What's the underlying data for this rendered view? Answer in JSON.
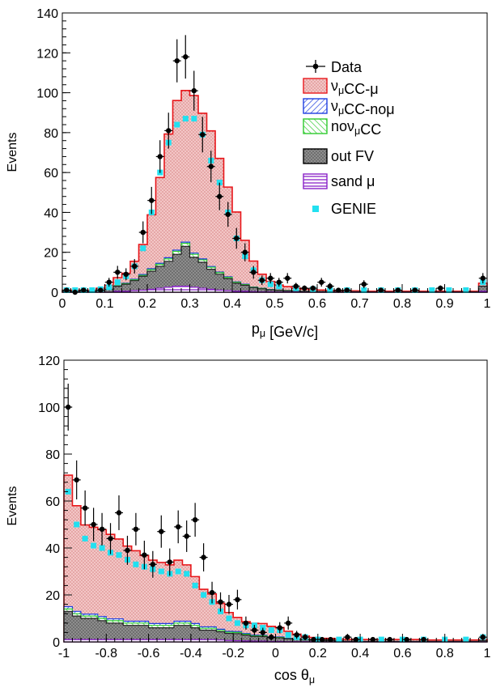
{
  "colors": {
    "signal": "#e8161a",
    "signal_fill": "#f3c6c6",
    "nomu": "#1f3fe0",
    "nocc": "#2ecb2e",
    "outfv": "#222222",
    "outfv_fill": "#8e8e8e",
    "sand": "#8a22c8",
    "genie": "#22e0f0",
    "data": "#000000"
  },
  "legend": {
    "data": "Data",
    "signal": "ν_μCC-μ",
    "nomu": "ν_μCC-noμ",
    "nocc": "noν_μCC",
    "outfv": "out FV",
    "sand": "sand μ",
    "genie": "GENIE"
  },
  "chart_data": [
    {
      "type": "bar",
      "panel": "top",
      "xlabel": "p_μ [GeV/c]",
      "ylabel": "Events",
      "xlim": [
        0,
        1
      ],
      "ylim": [
        0,
        140
      ],
      "yticks": [
        "0",
        "20",
        "40",
        "60",
        "80",
        "100",
        "120",
        "140"
      ],
      "xticks": [
        "0",
        "0.1",
        "0.2",
        "0.3",
        "0.4",
        "0.5",
        "0.6",
        "0.7",
        "0.8",
        "0.9",
        "1"
      ],
      "grid": false,
      "legend_position": "top-right",
      "bin_edges": [
        0.0,
        0.02,
        0.04,
        0.06,
        0.08,
        0.1,
        0.12,
        0.14,
        0.16,
        0.18,
        0.2,
        0.22,
        0.24,
        0.26,
        0.28,
        0.3,
        0.32,
        0.34,
        0.36,
        0.38,
        0.4,
        0.42,
        0.44,
        0.46,
        0.48,
        0.5,
        0.52,
        0.54,
        0.56,
        0.58,
        0.6,
        0.62,
        0.64,
        0.66,
        0.68,
        0.7,
        0.72,
        0.74,
        0.76,
        0.78,
        0.8,
        0.82,
        0.84,
        0.86,
        0.88,
        0.9,
        0.92,
        0.94,
        0.96,
        0.98,
        1.0
      ],
      "stacks": {
        "sand": [
          0,
          0,
          0,
          0,
          0,
          0,
          0.5,
          0.5,
          0.8,
          1,
          1.5,
          2,
          2.5,
          3,
          3,
          2.5,
          2,
          1.5,
          1,
          0.8,
          0.5,
          0.5,
          0.3,
          0.2,
          0.2,
          0.1,
          0.1,
          0.1,
          0,
          0,
          0,
          0,
          0,
          0,
          0,
          0,
          0,
          0,
          0,
          0,
          0,
          0,
          0,
          0,
          0,
          0,
          0,
          0,
          0,
          0.5
        ],
        "outfv": [
          0.5,
          0.5,
          0.5,
          0.5,
          1,
          1.5,
          2.5,
          3.5,
          5,
          7,
          9,
          11,
          13,
          16,
          20,
          15,
          13,
          10,
          8,
          6,
          4,
          3,
          2,
          1.5,
          1,
          0.8,
          0.6,
          0.5,
          0.4,
          0.3,
          0.3,
          0.2,
          0.2,
          0.2,
          0.2,
          0.2,
          0.1,
          0.1,
          0.1,
          0.1,
          0.1,
          0.1,
          0.1,
          0.1,
          0.1,
          0.1,
          0.1,
          0.1,
          0.1,
          2.5
        ],
        "nocc": [
          0,
          0,
          0,
          0,
          0,
          0,
          0.2,
          0.3,
          0.4,
          0.5,
          0.8,
          1,
          1.2,
          1.5,
          1.5,
          1.5,
          1.2,
          1,
          0.8,
          0.6,
          0.5,
          0.3,
          0.2,
          0.2,
          0.1,
          0.1,
          0.1,
          0,
          0,
          0,
          0,
          0,
          0,
          0,
          0,
          0,
          0,
          0,
          0,
          0,
          0,
          0,
          0,
          0,
          0,
          0,
          0,
          0,
          0,
          0
        ],
        "nomu": [
          0,
          0,
          0,
          0,
          0,
          0,
          0.1,
          0.2,
          0.3,
          0.4,
          0.5,
          0.5,
          0.6,
          0.6,
          0.6,
          0.6,
          0.5,
          0.4,
          0.3,
          0.3,
          0.2,
          0.2,
          0.1,
          0.1,
          0.1,
          0.1,
          0,
          0,
          0,
          0,
          0,
          0,
          0,
          0,
          0,
          0,
          0,
          0,
          0,
          0,
          0,
          0,
          0,
          0,
          0,
          0,
          0,
          0,
          0,
          0
        ],
        "signal": [
          0.5,
          0.5,
          0.5,
          0.5,
          1,
          2,
          4,
          5,
          9,
          15,
          27,
          43,
          62,
          75,
          76,
          79,
          73,
          68,
          57,
          45,
          35,
          22,
          13,
          7,
          4,
          2.5,
          2,
          1.5,
          1.2,
          1,
          0.8,
          0.7,
          0.6,
          0.5,
          0.5,
          0.4,
          0.4,
          0.4,
          0.4,
          0.4,
          0.4,
          0.4,
          0.4,
          0.4,
          0.4,
          0.4,
          0.4,
          0.4,
          0.4,
          1.5
        ]
      },
      "genie": {
        "x": [
          0.01,
          0.03,
          0.05,
          0.07,
          0.09,
          0.11,
          0.13,
          0.15,
          0.17,
          0.19,
          0.21,
          0.23,
          0.25,
          0.27,
          0.29,
          0.31,
          0.33,
          0.35,
          0.37,
          0.39,
          0.41,
          0.43,
          0.45,
          0.47,
          0.49,
          0.51,
          0.55,
          0.59,
          0.63,
          0.67,
          0.71,
          0.75,
          0.79,
          0.83,
          0.87,
          0.91,
          0.95,
          0.99
        ],
        "y": [
          1,
          1,
          1,
          1,
          1.5,
          2.5,
          5,
          8,
          13,
          22,
          40,
          60,
          75,
          84,
          87,
          87,
          79,
          66,
          55,
          40,
          27,
          18,
          11,
          6,
          4,
          3,
          2,
          1.5,
          1,
          1,
          1,
          1,
          1,
          1,
          1,
          1,
          1,
          5
        ]
      },
      "data_points": {
        "x": [
          0.01,
          0.03,
          0.05,
          0.09,
          0.11,
          0.13,
          0.15,
          0.17,
          0.19,
          0.21,
          0.23,
          0.25,
          0.27,
          0.29,
          0.31,
          0.33,
          0.35,
          0.37,
          0.39,
          0.41,
          0.43,
          0.45,
          0.47,
          0.49,
          0.51,
          0.53,
          0.55,
          0.57,
          0.59,
          0.61,
          0.63,
          0.65,
          0.67,
          0.71,
          0.75,
          0.79,
          0.83,
          0.89,
          0.99
        ],
        "y": [
          1,
          0,
          1,
          1,
          5,
          10,
          9,
          13,
          30,
          46,
          68,
          81,
          116,
          118,
          101,
          79,
          63,
          48,
          39,
          27,
          20,
          10,
          6,
          7,
          5,
          7,
          3,
          2,
          2,
          5,
          3,
          1,
          1,
          4,
          1,
          1,
          1,
          2,
          7
        ],
        "err": [
          1,
          0,
          1,
          1,
          2.2,
          3.2,
          3,
          3.6,
          5.5,
          6.8,
          8.2,
          9,
          10.8,
          10.9,
          10,
          8.9,
          7.9,
          6.9,
          6.2,
          5.2,
          4.5,
          3.2,
          2.4,
          2.6,
          2.2,
          2.6,
          1.7,
          1.4,
          1.4,
          2.2,
          1.7,
          1,
          1,
          2,
          1,
          1,
          1,
          1.4,
          2.6
        ]
      }
    },
    {
      "type": "bar",
      "panel": "bottom",
      "xlabel": "cos θ_μ",
      "ylabel": "Events",
      "xlim": [
        -1,
        1
      ],
      "ylim": [
        0,
        120
      ],
      "yticks": [
        "0",
        "20",
        "40",
        "60",
        "80",
        "100",
        "120"
      ],
      "xticks": [
        "-1",
        "-0.8",
        "-0.6",
        "-0.4",
        "-0.2",
        "0",
        "0.2",
        "0.4",
        "0.6",
        "0.8",
        "1"
      ],
      "grid": false,
      "bin_edges": [
        -1.0,
        -0.96,
        -0.92,
        -0.88,
        -0.84,
        -0.8,
        -0.76,
        -0.72,
        -0.68,
        -0.64,
        -0.6,
        -0.56,
        -0.52,
        -0.48,
        -0.44,
        -0.4,
        -0.36,
        -0.32,
        -0.28,
        -0.24,
        -0.2,
        -0.16,
        -0.12,
        -0.08,
        -0.04,
        0.0,
        0.04,
        0.08,
        0.12,
        0.16,
        0.2,
        0.24,
        0.28,
        0.32,
        0.36,
        0.4,
        0.44,
        0.48,
        0.52,
        0.56,
        0.6,
        0.64,
        0.68,
        0.72,
        0.76,
        0.8,
        0.84,
        0.88,
        0.92,
        0.96,
        1.0
      ],
      "stacks": {
        "sand": [
          1,
          1,
          1,
          1,
          1,
          1,
          1,
          1,
          1,
          1,
          1,
          1,
          1,
          1,
          1,
          1,
          1,
          1,
          0.8,
          0.6,
          0.5,
          0.4,
          0.3,
          0.3,
          0.2,
          0.2,
          0.1,
          0.1,
          0.1,
          0.1,
          0,
          0,
          0,
          0,
          0,
          0,
          0,
          0,
          0,
          0,
          0,
          0,
          0,
          0,
          0,
          0,
          0,
          0,
          0,
          0
        ],
        "outfv": [
          12,
          10,
          9,
          9,
          8,
          7,
          7,
          6,
          6,
          6,
          5,
          5,
          5,
          6,
          6,
          5,
          4,
          4,
          3.5,
          3,
          3,
          2.5,
          2,
          2,
          1.5,
          1.5,
          1.2,
          1,
          0.8,
          0.6,
          0.5,
          0.5,
          0.4,
          0.3,
          0.3,
          0.2,
          0.2,
          0.2,
          0.2,
          0.2,
          0.2,
          0.2,
          0.2,
          0.2,
          0.2,
          0.2,
          0.2,
          0.2,
          0.2,
          0.5
        ],
        "nocc": [
          1,
          1,
          1,
          1,
          1,
          1,
          1,
          1,
          1,
          1,
          1,
          1,
          1,
          1,
          1,
          1,
          0.8,
          0.8,
          0.6,
          0.5,
          0.5,
          0.4,
          0.3,
          0.3,
          0.2,
          0.2,
          0.1,
          0.1,
          0.1,
          0,
          0,
          0,
          0,
          0,
          0,
          0,
          0,
          0,
          0,
          0,
          0,
          0,
          0,
          0,
          0,
          0,
          0,
          0,
          0,
          0
        ],
        "nomu": [
          1,
          1,
          0.8,
          0.8,
          0.8,
          0.8,
          0.8,
          0.8,
          0.8,
          0.8,
          0.8,
          0.8,
          0.8,
          0.8,
          0.8,
          0.8,
          0.6,
          0.6,
          0.5,
          0.4,
          0.4,
          0.3,
          0.3,
          0.2,
          0.2,
          0.2,
          0.1,
          0.1,
          0,
          0,
          0,
          0,
          0,
          0,
          0,
          0,
          0,
          0,
          0,
          0,
          0,
          0,
          0,
          0,
          0,
          0,
          0,
          0,
          0,
          0
        ],
        "signal": [
          56,
          45,
          38,
          37,
          37,
          36,
          34,
          32,
          30,
          28,
          27,
          26,
          25,
          26,
          24,
          20,
          16,
          14,
          11,
          8,
          6,
          5,
          5,
          5,
          4.5,
          4,
          3,
          2,
          1.5,
          1.2,
          1,
          1,
          0.8,
          0.8,
          0.8,
          0.8,
          0.8,
          0.8,
          0.8,
          0.8,
          0.8,
          0.8,
          0.6,
          0.6,
          0.6,
          0.6,
          0.6,
          0.6,
          0.6,
          0.5
        ]
      },
      "genie": {
        "x": [
          -0.98,
          -0.94,
          -0.9,
          -0.86,
          -0.82,
          -0.78,
          -0.74,
          -0.7,
          -0.66,
          -0.62,
          -0.58,
          -0.54,
          -0.5,
          -0.46,
          -0.42,
          -0.38,
          -0.34,
          -0.3,
          -0.26,
          -0.22,
          -0.18,
          -0.14,
          -0.1,
          -0.06,
          -0.02,
          0.02,
          0.06,
          0.1,
          0.14,
          0.2,
          0.3,
          0.4,
          0.5,
          0.6,
          0.7,
          0.8,
          0.9,
          0.98
        ],
        "y": [
          64,
          50,
          44,
          41,
          40,
          38,
          37,
          35,
          33,
          32,
          31,
          30,
          29,
          30,
          29,
          24,
          20,
          17,
          13,
          10,
          8,
          7,
          7,
          6,
          5,
          5,
          3,
          2,
          2,
          1,
          1,
          1,
          1,
          1,
          1,
          1,
          1,
          2
        ]
      },
      "data_points": {
        "x": [
          -0.98,
          -0.94,
          -0.9,
          -0.86,
          -0.82,
          -0.78,
          -0.74,
          -0.7,
          -0.66,
          -0.62,
          -0.58,
          -0.54,
          -0.5,
          -0.46,
          -0.42,
          -0.38,
          -0.34,
          -0.3,
          -0.26,
          -0.22,
          -0.18,
          -0.14,
          -0.1,
          -0.06,
          -0.02,
          0.02,
          0.06,
          0.1,
          0.14,
          0.18,
          0.22,
          0.26,
          0.34,
          0.38,
          0.46,
          0.54,
          0.62,
          0.7,
          0.98
        ],
        "y": [
          100,
          69,
          57,
          50,
          48,
          44,
          55,
          39,
          48,
          37,
          33,
          47,
          34,
          49,
          45,
          52,
          36,
          21,
          17,
          16,
          18,
          8,
          5,
          4,
          2,
          6,
          8,
          3,
          2,
          1,
          1,
          1,
          2,
          1,
          1,
          1,
          1,
          1,
          2
        ],
        "err": [
          10,
          8.3,
          7.5,
          7.1,
          6.9,
          6.6,
          7.4,
          6.2,
          6.9,
          6.1,
          5.7,
          6.9,
          5.8,
          7,
          6.7,
          7.2,
          6,
          4.6,
          4.1,
          4,
          4.2,
          2.8,
          2.2,
          2,
          1.4,
          2.4,
          2.8,
          1.7,
          1.4,
          1,
          1,
          1,
          1.4,
          1,
          1,
          1,
          1,
          1,
          1.4
        ]
      }
    }
  ]
}
